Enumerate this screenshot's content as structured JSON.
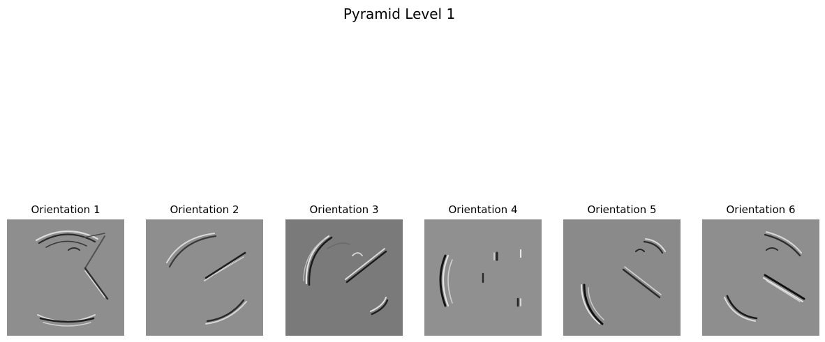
{
  "figure": {
    "title": "Pyramid Level 1"
  },
  "panels": [
    {
      "title": "Orientation 1",
      "background": "#8e8e8e"
    },
    {
      "title": "Orientation 2",
      "background": "#8e8e8e"
    },
    {
      "title": "Orientation 3",
      "background": "#7a7a7a"
    },
    {
      "title": "Orientation 4",
      "background": "#909090"
    },
    {
      "title": "Orientation 5",
      "background": "#8a8a8a"
    },
    {
      "title": "Orientation 6",
      "background": "#8e8e8e"
    }
  ]
}
